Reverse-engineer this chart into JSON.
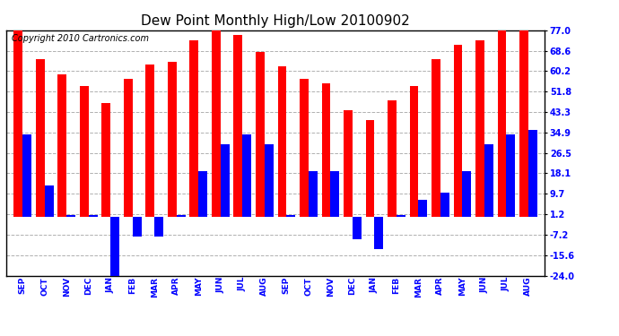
{
  "title": "Dew Point Monthly High/Low 20100902",
  "copyright": "Copyright 2010 Cartronics.com",
  "months": [
    "SEP",
    "OCT",
    "NOV",
    "DEC",
    "JAN",
    "FEB",
    "MAR",
    "APR",
    "MAY",
    "JUN",
    "JUL",
    "AUG",
    "SEP",
    "OCT",
    "NOV",
    "DEC",
    "JAN",
    "FEB",
    "MAR",
    "APR",
    "MAY",
    "JUN",
    "JUL",
    "AUG"
  ],
  "highs": [
    77.0,
    65.0,
    59.0,
    54.0,
    47.0,
    57.0,
    63.0,
    64.0,
    73.0,
    77.0,
    75.0,
    68.0,
    62.0,
    57.0,
    55.0,
    44.0,
    40.0,
    48.0,
    54.0,
    65.0,
    71.0,
    73.0,
    77.0,
    77.0
  ],
  "lows": [
    34.0,
    13.0,
    1.0,
    1.0,
    -24.0,
    -8.0,
    -8.0,
    1.0,
    19.0,
    30.0,
    34.0,
    30.0,
    1.0,
    19.0,
    19.0,
    -9.0,
    -13.0,
    1.0,
    7.0,
    10.0,
    19.0,
    30.0,
    34.0,
    36.0
  ],
  "ylim": [
    -24.0,
    77.0
  ],
  "yticks": [
    -24.0,
    -15.6,
    -7.2,
    1.2,
    9.7,
    18.1,
    26.5,
    34.9,
    43.3,
    51.8,
    60.2,
    68.6,
    77.0
  ],
  "high_color": "#ff0000",
  "low_color": "#0000ff",
  "bg_color": "#ffffff",
  "grid_color": "#b0b0b0",
  "bar_width": 0.4,
  "title_fontsize": 11,
  "copyright_fontsize": 7,
  "tick_fontsize": 7,
  "xlabel_fontsize": 6.5
}
